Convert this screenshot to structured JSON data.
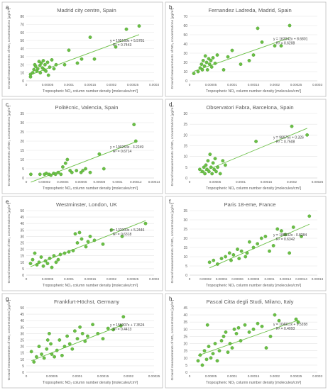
{
  "chart_data": [
    {
      "panel": "a",
      "type": "scatter",
      "title": "Madrid city centre, Spain",
      "xlabel": "Tropospheric NO₂ column number density [molecules/cm²]",
      "ylabel": "Ground measurements of NO₂ concentrations [μg/m³]",
      "xlim": [
        0,
        0.0003
      ],
      "ylim": [
        0,
        80
      ],
      "xticks": [
        "0",
        "0.00005",
        "0.0001",
        "0.00015",
        "0.0002",
        "0.00025",
        "0.0003"
      ],
      "yticks": [
        "0",
        "10",
        "20",
        "30",
        "40",
        "50",
        "60",
        "70",
        "80"
      ],
      "trend_slope": 195169,
      "trend_intercept": 5.5781,
      "equation": "y = 195169x + 5.5781",
      "r2": "R² = 0.7443",
      "points": [
        [
          1e-05,
          5
        ],
        [
          1e-05,
          8
        ],
        [
          1.5e-05,
          10
        ],
        [
          1.8e-05,
          14
        ],
        [
          2e-05,
          20
        ],
        [
          2.2e-05,
          18
        ],
        [
          2.5e-05,
          12
        ],
        [
          2.7e-05,
          15
        ],
        [
          3e-05,
          24
        ],
        [
          3.2e-05,
          19
        ],
        [
          3.3e-05,
          10
        ],
        [
          3.5e-05,
          22
        ],
        [
          3.8e-05,
          16
        ],
        [
          4e-05,
          25
        ],
        [
          4.2e-05,
          14
        ],
        [
          4.4e-05,
          20
        ],
        [
          4.6e-05,
          12
        ],
        [
          5e-05,
          23
        ],
        [
          5.2e-05,
          7
        ],
        [
          5.5e-05,
          17
        ],
        [
          6e-05,
          26
        ],
        [
          6.5e-05,
          15
        ],
        [
          7e-05,
          20
        ],
        [
          9e-05,
          20
        ],
        [
          0.0001,
          38
        ],
        [
          0.00012,
          22
        ],
        [
          0.00013,
          27
        ],
        [
          0.00015,
          54
        ],
        [
          0.00016,
          27
        ],
        [
          0.00021,
          42
        ],
        [
          0.000235,
          64
        ],
        [
          0.000265,
          68
        ]
      ]
    },
    {
      "panel": "b",
      "type": "scatter",
      "title": "Fernandez Ladreda, Madrid, Spain",
      "xlabel": "Tropospheric NO₂ column number density [molecules/cm²]",
      "ylabel": "Ground measurements of NO₂ concentrations [μg/m³]",
      "xlim": [
        0,
        0.0003
      ],
      "ylim": [
        0,
        70
      ],
      "xticks": [
        "0",
        "0.00005",
        "0.0001",
        "0.00015",
        "0.0002",
        "0.00025",
        "0.0003"
      ],
      "yticks": [
        "0",
        "10",
        "20",
        "30",
        "40",
        "50",
        "60",
        "70"
      ],
      "trend_slope": 162042,
      "trend_intercept": 8.6801,
      "equation": "y = 162042x + 8.6801",
      "r2": "R² = 0.6208",
      "points": [
        [
          1e-05,
          8
        ],
        [
          2e-05,
          10
        ],
        [
          2.5e-05,
          14
        ],
        [
          2.8e-05,
          18
        ],
        [
          3e-05,
          12
        ],
        [
          3.2e-05,
          22
        ],
        [
          3.5e-05,
          16
        ],
        [
          3.7e-05,
          27
        ],
        [
          4e-05,
          20
        ],
        [
          4.2e-05,
          12
        ],
        [
          4.5e-05,
          24
        ],
        [
          4.7e-05,
          18
        ],
        [
          5e-05,
          22
        ],
        [
          5.2e-05,
          15
        ],
        [
          5.5e-05,
          25
        ],
        [
          6e-05,
          19
        ],
        [
          6.5e-05,
          28
        ],
        [
          8e-05,
          12
        ],
        [
          9e-05,
          26
        ],
        [
          0.0001,
          33
        ],
        [
          0.00012,
          18
        ],
        [
          0.00014,
          22
        ],
        [
          0.00015,
          28
        ],
        [
          0.00016,
          57
        ],
        [
          0.00017,
          42
        ],
        [
          0.0002,
          38
        ],
        [
          0.000215,
          38
        ],
        [
          0.000235,
          60
        ]
      ]
    },
    {
      "panel": "c",
      "type": "scatter",
      "title": "Politècnic, Valencia, Spain",
      "xlabel": "Tropospheric NO₂ column number density [molecules/cm²]",
      "ylabel": "Ground measurements of NO₂ concentrations [μg/m³]",
      "xlim": [
        0,
        0.00014
      ],
      "ylim": [
        0,
        35
      ],
      "xticks": [
        "0",
        "0.00002",
        "0.00004",
        "0.00006",
        "0.00008",
        "0.0001",
        "0.00012",
        "0.00014"
      ],
      "yticks": [
        "0",
        "5",
        "10",
        "15",
        "20",
        "25",
        "30",
        "35"
      ],
      "trend_slope": 190263,
      "trend_intercept": -3.2249,
      "equation": "y = 190263x - 3.2249",
      "r2": "R² = 0.6714",
      "points": [
        [
          5e-06,
          2
        ],
        [
          1.5e-05,
          2
        ],
        [
          2e-05,
          2
        ],
        [
          2.2e-05,
          2.5
        ],
        [
          2.5e-05,
          2
        ],
        [
          2.7e-05,
          1.5
        ],
        [
          3e-05,
          2.5
        ],
        [
          3.2e-05,
          2
        ],
        [
          3.5e-05,
          3
        ],
        [
          3.8e-05,
          2
        ],
        [
          4e-05,
          6
        ],
        [
          4.3e-05,
          8
        ],
        [
          4.5e-05,
          10
        ],
        [
          4.8e-05,
          4
        ],
        [
          5e-05,
          3
        ],
        [
          5.5e-05,
          4
        ],
        [
          6e-05,
          3
        ],
        [
          6.2e-05,
          4
        ],
        [
          6.5e-05,
          5
        ],
        [
          7e-05,
          3
        ],
        [
          8e-05,
          13
        ],
        [
          8.5e-05,
          5
        ],
        [
          0.000118,
          29
        ],
        [
          0.00012,
          20
        ]
      ]
    },
    {
      "panel": "d",
      "type": "scatter",
      "title": "Observatori Fabra, Barcelona, Spain",
      "xlabel": "Tropospheric NO₂ column number density [molecules/cm²]",
      "ylabel": "Ground measurements of NO₂ concentrations [μg/m³]",
      "xlim": [
        0,
        0.00025
      ],
      "ylim": [
        0,
        30
      ],
      "xticks": [
        "0",
        "0.00005",
        "0.0001",
        "0.00015",
        "0.0002",
        "0.00025"
      ],
      "yticks": [
        "0",
        "5",
        "10",
        "15",
        "20",
        "25",
        "30"
      ],
      "trend_slope": 98975,
      "trend_intercept": 0.326,
      "equation": "y = 98975x + 0.326",
      "r2": "R² = 0.7508",
      "points": [
        [
          2e-05,
          4
        ],
        [
          2.5e-05,
          3
        ],
        [
          2.8e-05,
          5
        ],
        [
          3e-05,
          2
        ],
        [
          3.2e-05,
          6
        ],
        [
          3.4e-05,
          4
        ],
        [
          3.6e-05,
          8
        ],
        [
          3.8e-05,
          3
        ],
        [
          4e-05,
          11
        ],
        [
          4.2e-05,
          5
        ],
        [
          4.4e-05,
          2
        ],
        [
          4.6e-05,
          7
        ],
        [
          4.8e-05,
          4
        ],
        [
          5e-05,
          9
        ],
        [
          5.2e-05,
          3
        ],
        [
          5.5e-05,
          5
        ],
        [
          6e-05,
          2
        ],
        [
          6.5e-05,
          8
        ],
        [
          7e-05,
          6
        ],
        [
          0.00013,
          17
        ],
        [
          0.0002,
          24
        ],
        [
          0.00023,
          20
        ]
      ]
    },
    {
      "panel": "e",
      "type": "scatter",
      "title": "Westminster, London, UK",
      "xlabel": "Tropospheric NO₂ column number density [molecules/cm²]",
      "ylabel": "Ground measurements of NO₂ concentrations [μg/m³]",
      "xlim": [
        0,
        0.0003
      ],
      "ylim": [
        0,
        50
      ],
      "xticks": [
        "0",
        "0.00005",
        "0.0001",
        "0.00015",
        "0.0002",
        "0.00025",
        "0.0003"
      ],
      "yticks": [
        "0",
        "5",
        "10",
        "15",
        "20",
        "25",
        "30",
        "35",
        "40",
        "45",
        "50"
      ],
      "trend_slope": 132000,
      "trend_intercept": 5.2446,
      "equation": "y = 132000x + 5.2446",
      "r2": "R² = 0.6318",
      "points": [
        [
          1e-05,
          9
        ],
        [
          1.5e-05,
          12
        ],
        [
          2e-05,
          17
        ],
        [
          2.5e-05,
          8
        ],
        [
          3e-05,
          10
        ],
        [
          3.5e-05,
          14
        ],
        [
          4e-05,
          7
        ],
        [
          4.5e-05,
          11
        ],
        [
          5e-05,
          9
        ],
        [
          5.5e-05,
          13
        ],
        [
          6e-05,
          6
        ],
        [
          6.5e-05,
          15
        ],
        [
          7e-05,
          10
        ],
        [
          7.5e-05,
          12
        ],
        [
          8e-05,
          16
        ],
        [
          9e-05,
          17
        ],
        [
          0.0001,
          18
        ],
        [
          0.00011,
          19
        ],
        [
          0.000115,
          32
        ],
        [
          0.00012,
          25
        ],
        [
          0.000125,
          33
        ],
        [
          0.00013,
          28
        ],
        [
          0.00014,
          22
        ],
        [
          0.000145,
          26
        ],
        [
          0.00015,
          30
        ],
        [
          0.00016,
          27
        ],
        [
          0.00018,
          24
        ],
        [
          0.0002,
          35
        ],
        [
          0.000225,
          30
        ],
        [
          0.00028,
          40
        ]
      ]
    },
    {
      "panel": "f",
      "type": "scatter",
      "title": "Paris 18-eme, France",
      "xlabel": "Tropospheric NO₂ column number density [molecules/cm²]",
      "ylabel": "Ground measurements of NO₂ concentrations [μg/m³]",
      "xlim": [
        0,
        0.00016
      ],
      "ylim": [
        0,
        35
      ],
      "xticks": [
        "0",
        "0.00002",
        "0.00004",
        "0.00006",
        "0.00008",
        "0.0001",
        "0.00012",
        "0.00014",
        "0.00016"
      ],
      "yticks": [
        "0",
        "5",
        "10",
        "15",
        "20",
        "25",
        "30",
        "35"
      ],
      "trend_slope": 189532,
      "trend_intercept": -0.8284,
      "equation": "y = 189532x - 0.8284",
      "r2": "R² = 0.6342",
      "points": [
        [
          2.5e-05,
          7
        ],
        [
          3e-05,
          8
        ],
        [
          3.5e-05,
          6
        ],
        [
          4e-05,
          9
        ],
        [
          4.5e-05,
          10
        ],
        [
          5e-05,
          12
        ],
        [
          5.2e-05,
          8
        ],
        [
          5.5e-05,
          11
        ],
        [
          6e-05,
          14
        ],
        [
          6.2e-05,
          9
        ],
        [
          6.5e-05,
          13
        ],
        [
          7e-05,
          10
        ],
        [
          7.2e-05,
          12
        ],
        [
          7.5e-05,
          18
        ],
        [
          8e-05,
          15
        ],
        [
          8.5e-05,
          17
        ],
        [
          9e-05,
          20
        ],
        [
          9.5e-05,
          21
        ],
        [
          0.0001,
          13
        ],
        [
          0.000105,
          16
        ],
        [
          0.00011,
          25
        ],
        [
          0.000115,
          24
        ],
        [
          0.00012,
          22
        ],
        [
          0.000125,
          12
        ],
        [
          0.00013,
          26
        ],
        [
          0.00014,
          21
        ],
        [
          0.00015,
          32
        ]
      ]
    },
    {
      "panel": "g",
      "type": "scatter",
      "title": "Frankfurt-Höchst, Germany",
      "xlabel": "Tropospheric NO₂ column number density [molecules/cm²]",
      "ylabel": "Ground measurements of NO₂ concentrations [μg/m³]",
      "xlim": [
        0,
        0.00025
      ],
      "ylim": [
        0,
        50
      ],
      "xticks": [
        "0",
        "0.00005",
        "0.0001",
        "0.00015",
        "0.0002",
        "0.00025"
      ],
      "yticks": [
        "0",
        "5",
        "10",
        "15",
        "20",
        "25",
        "30",
        "35",
        "40",
        "45",
        "50"
      ],
      "trend_slope": 156007,
      "trend_intercept": 7.3524,
      "equation": "y = 156007x + 7.3524",
      "r2": "R² = 0.4413",
      "points": [
        [
          1e-05,
          16
        ],
        [
          1.5e-05,
          8
        ],
        [
          2e-05,
          12
        ],
        [
          2.5e-05,
          20
        ],
        [
          3e-05,
          14
        ],
        [
          3.5e-05,
          11
        ],
        [
          4e-05,
          18
        ],
        [
          4.2e-05,
          25
        ],
        [
          4.5e-05,
          30
        ],
        [
          4.8e-05,
          22
        ],
        [
          5e-05,
          14
        ],
        [
          5.5e-05,
          12
        ],
        [
          6e-05,
          17
        ],
        [
          6.5e-05,
          25
        ],
        [
          7e-05,
          13
        ],
        [
          7.5e-05,
          20
        ],
        [
          8e-05,
          28
        ],
        [
          8.5e-05,
          22
        ],
        [
          9e-05,
          18
        ],
        [
          9.5e-05,
          32
        ],
        [
          0.0001,
          26
        ],
        [
          0.000105,
          35
        ],
        [
          0.00011,
          30
        ],
        [
          0.000115,
          24
        ],
        [
          0.00012,
          28
        ],
        [
          0.00013,
          37
        ],
        [
          0.00014,
          30
        ],
        [
          0.00015,
          26
        ],
        [
          0.00016,
          34
        ],
        [
          0.00017,
          33
        ],
        [
          0.000185,
          36
        ],
        [
          0.00019,
          43
        ]
      ]
    },
    {
      "panel": "h",
      "type": "scatter",
      "title": "Pascal Citta degli Studi, Milano, Italy",
      "xlabel": "Tropospheric NO₂ column number density [molecules/cm²]",
      "ylabel": "Ground measurements of NO₂ concentrations [μg/m³]",
      "xlim": [
        0,
        0.0003
      ],
      "ylim": [
        0,
        45
      ],
      "xticks": [
        "0",
        "0.00005",
        "0.0001",
        "0.00015",
        "0.0002",
        "0.00025",
        "0.0003"
      ],
      "yticks": [
        "0",
        "5",
        "10",
        "15",
        "20",
        "25",
        "30",
        "35",
        "40",
        "45"
      ],
      "trend_slope": 104911,
      "trend_intercept": 9.5358,
      "equation": "y = 104911x + 9.5358",
      "r2": "R² = 0.4093",
      "points": [
        [
          2e-05,
          8
        ],
        [
          2.5e-05,
          12
        ],
        [
          3e-05,
          5
        ],
        [
          3.5e-05,
          15
        ],
        [
          4e-05,
          9
        ],
        [
          4.2e-05,
          33
        ],
        [
          4.5e-05,
          18
        ],
        [
          5e-05,
          10
        ],
        [
          5.5e-05,
          13
        ],
        [
          6e-05,
          20
        ],
        [
          6.5e-05,
          8
        ],
        [
          7e-05,
          15
        ],
        [
          7.5e-05,
          22
        ],
        [
          8e-05,
          25
        ],
        [
          8.5e-05,
          28
        ],
        [
          9e-05,
          14
        ],
        [
          9.5e-05,
          20
        ],
        [
          0.0001,
          17
        ],
        [
          0.000105,
          30
        ],
        [
          0.00011,
          27
        ],
        [
          0.000115,
          31
        ],
        [
          0.00012,
          22
        ],
        [
          0.00013,
          33
        ],
        [
          0.00014,
          28
        ],
        [
          0.00015,
          30
        ],
        [
          0.00016,
          34
        ],
        [
          0.00017,
          32
        ],
        [
          0.00018,
          17
        ],
        [
          0.00019,
          25
        ],
        [
          0.0002,
          40
        ],
        [
          0.00021,
          36
        ],
        [
          0.00025,
          37
        ],
        [
          0.000255,
          35
        ]
      ]
    }
  ]
}
